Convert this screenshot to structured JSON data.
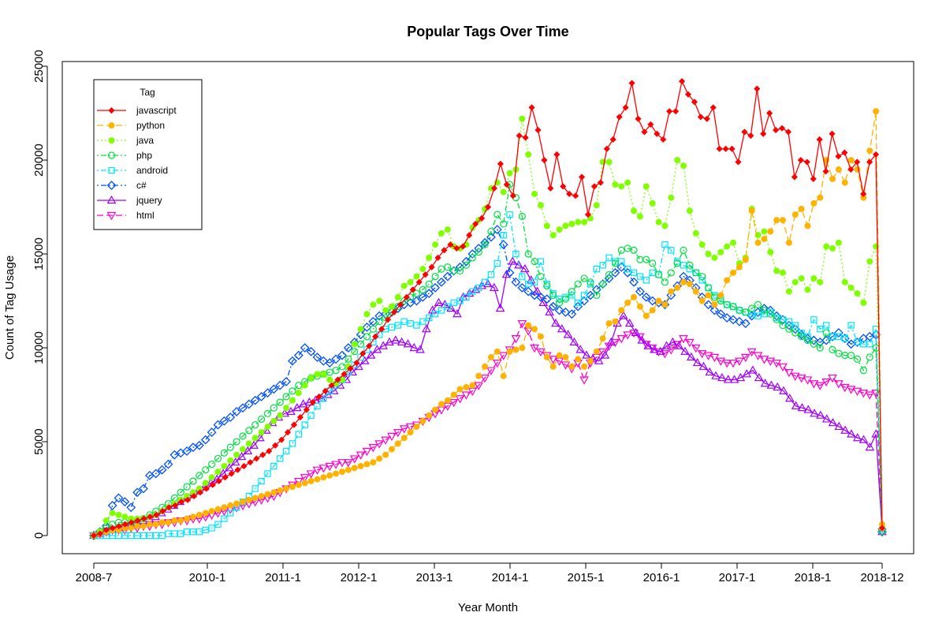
{
  "chart_data": {
    "type": "line",
    "title": "Popular Tags Over Time",
    "xlabel": "Year Month",
    "ylabel": "Count of Tag Usage",
    "x_start": "2008-7",
    "x_end": "2018-12",
    "xlim": [
      "2008-7",
      "2018-12"
    ],
    "ylim": [
      0,
      25000
    ],
    "x_tick_labels": [
      "2008-7",
      "2010-1",
      "2011-1",
      "2012-1",
      "2013-1",
      "2014-1",
      "2015-1",
      "2016-1",
      "2017-1",
      "2018-1",
      "2018-12"
    ],
    "y_ticks": [
      0,
      5000,
      10000,
      15000,
      20000,
      25000
    ],
    "grid": false,
    "legend": {
      "title": "Tag",
      "placement": "top-left"
    },
    "series": [
      {
        "name": "javascript",
        "color": "#ff0000",
        "marker": "diamond-filled",
        "line_style": "solid",
        "values": [
          0,
          100,
          300,
          400,
          500,
          600,
          700,
          800,
          900,
          1000,
          1100,
          1300,
          1500,
          1600,
          1800,
          1900,
          2100,
          2300,
          2500,
          2700,
          2900,
          3100,
          3300,
          3500,
          3700,
          3900,
          4100,
          4300,
          4500,
          4800,
          5100,
          5500,
          5900,
          6300,
          6700,
          7100,
          7400,
          7700,
          8000,
          8300,
          8600,
          8900,
          9200,
          9700,
          10100,
          10600,
          11000,
          11500,
          11900,
          12300,
          12700,
          13100,
          13500,
          13900,
          14300,
          14800,
          15200,
          15500,
          15300,
          15400,
          16000,
          16600,
          16900,
          17500,
          18500,
          19800,
          18700,
          18100,
          21300,
          21200,
          22800,
          21600,
          20000,
          18500,
          20300,
          18600,
          18200,
          18100,
          19100,
          17100,
          18600,
          18800,
          20600,
          21100,
          22300,
          22800,
          24100,
          22200,
          21500,
          21900,
          21400,
          21100,
          22600,
          22600,
          24200,
          23500,
          23100,
          22300,
          22200,
          22800,
          20600,
          20600,
          20600,
          19900,
          21500,
          21300,
          23800,
          21400,
          22500,
          21600,
          21700,
          21500,
          19100,
          20000,
          19900,
          19000,
          21100,
          19400,
          21400,
          20200,
          20400,
          19500,
          19900,
          18200,
          19900,
          20300,
          400
        ]
      },
      {
        "name": "python",
        "color": "#ffb300",
        "marker": "circle-filled",
        "line_style": "dashed",
        "values": [
          0,
          100,
          200,
          300,
          300,
          400,
          400,
          500,
          500,
          600,
          600,
          700,
          700,
          800,
          800,
          900,
          1000,
          1100,
          1200,
          1300,
          1400,
          1500,
          1600,
          1700,
          1800,
          1900,
          2000,
          2100,
          2200,
          2300,
          2400,
          2500,
          2600,
          2700,
          2800,
          2900,
          3000,
          3100,
          3200,
          3300,
          3400,
          3500,
          3600,
          3700,
          3800,
          3900,
          4100,
          4300,
          4600,
          4900,
          5200,
          5500,
          5800,
          6100,
          6400,
          6700,
          7000,
          7200,
          7500,
          7800,
          7900,
          8000,
          8500,
          9000,
          9500,
          9800,
          8500,
          9800,
          9900,
          10000,
          11200,
          11000,
          10600,
          9500,
          9000,
          9600,
          9500,
          9000,
          9400,
          9000,
          9300,
          9800,
          10500,
          11300,
          11400,
          12000,
          12400,
          12700,
          12200,
          11700,
          12000,
          12500,
          12300,
          13000,
          13200,
          13500,
          13400,
          13000,
          12500,
          12800,
          12300,
          12800,
          13600,
          14000,
          14300,
          14700,
          17300,
          15600,
          15800,
          16200,
          16800,
          16800,
          15600,
          17100,
          17400,
          16500,
          17700,
          18000,
          20000,
          19000,
          19500,
          18800,
          20000,
          19500,
          18000,
          20500,
          22600,
          600
        ]
      },
      {
        "name": "java",
        "color": "#80ff00",
        "marker": "circle-filled",
        "line_style": "dotted",
        "values": [
          0,
          200,
          800,
          1200,
          1100,
          1000,
          900,
          900,
          900,
          1000,
          1100,
          1300,
          1500,
          1700,
          1900,
          2100,
          2300,
          2500,
          2800,
          3100,
          3400,
          3700,
          4000,
          4300,
          4600,
          4900,
          5200,
          5500,
          5800,
          6100,
          6400,
          6800,
          7200,
          7600,
          8000,
          8400,
          8600,
          8600,
          8300,
          8100,
          8300,
          9000,
          10200,
          11000,
          11800,
          12300,
          12500,
          12000,
          12200,
          12700,
          13300,
          13500,
          13800,
          14200,
          14800,
          15500,
          16100,
          16300,
          15400,
          15300,
          15500,
          16400,
          16800,
          17400,
          18500,
          18800,
          18300,
          19300,
          19500,
          22200,
          20300,
          18200,
          17600,
          16500,
          16000,
          16300,
          16500,
          16600,
          16700,
          16700,
          16900,
          17600,
          19900,
          19900,
          18700,
          18600,
          18800,
          17300,
          17000,
          18600,
          17700,
          16700,
          16500,
          18000,
          20000,
          19700,
          17300,
          16100,
          15500,
          15000,
          14800,
          15100,
          15400,
          15600,
          14500,
          14800,
          17400,
          16000,
          16200,
          15100,
          14100,
          14000,
          13000,
          13500,
          13700,
          13100,
          13700,
          13500,
          15400,
          15300,
          15600,
          13500,
          13200,
          12900,
          12400,
          14600,
          15400,
          400
        ]
      },
      {
        "name": "php",
        "color": "#00e040",
        "marker": "circle-open",
        "line_style": "dotdash",
        "values": [
          0,
          200,
          400,
          600,
          700,
          700,
          700,
          800,
          900,
          1100,
          1300,
          1500,
          1700,
          2000,
          2300,
          2600,
          2900,
          3200,
          3500,
          3800,
          4100,
          4400,
          4700,
          5000,
          5300,
          5600,
          5900,
          6200,
          6500,
          6800,
          7100,
          7400,
          7700,
          8000,
          8200,
          8400,
          8500,
          8600,
          8700,
          8800,
          9000,
          9400,
          9800,
          10200,
          10600,
          11000,
          11400,
          11600,
          11900,
          12200,
          12500,
          12700,
          12900,
          13100,
          13400,
          13800,
          14200,
          14300,
          14100,
          14100,
          14400,
          14800,
          15100,
          15500,
          16200,
          17100,
          16600,
          18700,
          18000,
          17000,
          15000,
          14600,
          13800,
          13300,
          12800,
          12400,
          12600,
          13000,
          13400,
          13700,
          13500,
          12800,
          13400,
          13900,
          14500,
          15200,
          15300,
          15200,
          14700,
          14700,
          14500,
          13900,
          13500,
          14000,
          14500,
          15200,
          14400,
          14000,
          13800,
          13200,
          12700,
          12500,
          12300,
          12200,
          12000,
          11900,
          12100,
          12300,
          12000,
          11800,
          11500,
          11200,
          11000,
          10800,
          10600,
          10400,
          10200,
          10000,
          10800,
          9900,
          9700,
          9600,
          9600,
          9400,
          8800,
          9500,
          10000,
          200
        ]
      },
      {
        "name": "android",
        "color": "#00e5ff",
        "marker": "square-open",
        "line_style": "dotdash",
        "values": [
          0,
          0,
          0,
          0,
          0,
          0,
          0,
          0,
          0,
          0,
          0,
          0,
          100,
          100,
          100,
          200,
          200,
          200,
          300,
          400,
          600,
          900,
          1200,
          1500,
          1800,
          2100,
          2500,
          2900,
          3300,
          3700,
          4100,
          4500,
          4900,
          5400,
          5900,
          6400,
          6900,
          7300,
          7700,
          8000,
          8300,
          8700,
          9100,
          9500,
          9900,
          10300,
          10700,
          11000,
          11100,
          11200,
          11400,
          11300,
          11200,
          11400,
          11600,
          11800,
          12000,
          12200,
          12400,
          12500,
          12700,
          13000,
          13200,
          13500,
          13900,
          14500,
          16000,
          17100,
          15000,
          13800,
          13400,
          13500,
          14600,
          13400,
          12900,
          12600,
          12700,
          12800,
          12400,
          12800,
          13400,
          14200,
          14400,
          14800,
          14600,
          14600,
          14200,
          14000,
          13800,
          13600,
          14000,
          13900,
          15500,
          15200,
          14600,
          14400,
          14200,
          14000,
          13600,
          13200,
          12800,
          12600,
          12300,
          12200,
          12000,
          11900,
          11800,
          11700,
          11800,
          11900,
          11600,
          11500,
          11400,
          11200,
          10800,
          10600,
          11500,
          11000,
          11200,
          10600,
          10600,
          10500,
          11200,
          10300,
          10200,
          10200,
          11000,
          300
        ]
      },
      {
        "name": "c#",
        "color": "#0050ff",
        "marker": "diamond-open",
        "line_style": "dotdash",
        "values": [
          0,
          200,
          500,
          1600,
          2000,
          1800,
          1500,
          2300,
          2500,
          3200,
          3300,
          3500,
          3800,
          4300,
          4400,
          4500,
          4700,
          4800,
          5100,
          5500,
          5900,
          6100,
          6300,
          6600,
          6800,
          7000,
          7200,
          7400,
          7600,
          7800,
          8000,
          8200,
          9300,
          9600,
          10000,
          9800,
          9500,
          9300,
          9200,
          9400,
          9600,
          10000,
          10300,
          10700,
          11100,
          11400,
          11700,
          11800,
          11900,
          12100,
          12300,
          12400,
          12500,
          12700,
          12900,
          13200,
          13500,
          13800,
          14100,
          14300,
          14600,
          15000,
          15300,
          15600,
          15900,
          16300,
          15500,
          14000,
          13500,
          13200,
          13000,
          12800,
          12700,
          12600,
          12200,
          12000,
          11900,
          11800,
          12200,
          12500,
          12800,
          13100,
          13400,
          13700,
          14000,
          14300,
          14000,
          13500,
          13000,
          12700,
          12500,
          12400,
          12300,
          12800,
          13300,
          13800,
          13600,
          13200,
          12700,
          12300,
          12000,
          11800,
          11600,
          11500,
          11400,
          11300,
          11700,
          11900,
          12100,
          12000,
          11700,
          11500,
          11200,
          11000,
          10700,
          10500,
          10400,
          10300,
          10400,
          10600,
          10800,
          10500,
          10200,
          10300,
          10500,
          10600,
          10700,
          200
        ]
      },
      {
        "name": "jquery",
        "color": "#a000ff",
        "marker": "triangle-up-open",
        "line_style": "solid",
        "values": [
          0,
          100,
          200,
          300,
          400,
          500,
          600,
          700,
          800,
          900,
          1000,
          1200,
          1400,
          1600,
          1800,
          2000,
          2200,
          2400,
          2600,
          2800,
          3000,
          3300,
          3600,
          3900,
          4200,
          4500,
          4800,
          5200,
          5600,
          6000,
          6300,
          6500,
          6600,
          6800,
          7000,
          7100,
          7200,
          7300,
          7500,
          7700,
          8000,
          8300,
          8700,
          9000,
          9300,
          9600,
          9900,
          10100,
          10300,
          10400,
          10300,
          10200,
          10000,
          9900,
          11000,
          12000,
          12400,
          12300,
          12100,
          11800,
          12700,
          12900,
          13100,
          13300,
          13400,
          13200,
          12100,
          13900,
          14600,
          14400,
          14200,
          13600,
          13000,
          12400,
          11900,
          11300,
          11000,
          10700,
          10300,
          9900,
          9600,
          9400,
          9300,
          9600,
          10300,
          11300,
          11700,
          11300,
          10800,
          10400,
          10100,
          9900,
          9800,
          10100,
          10300,
          10100,
          9800,
          9500,
          9200,
          9000,
          8700,
          8500,
          8400,
          8300,
          8300,
          8400,
          8600,
          8800,
          8400,
          8100,
          8000,
          7900,
          7700,
          7300,
          6900,
          6800,
          6700,
          6500,
          6400,
          6200,
          6000,
          5800,
          5600,
          5400,
          5200,
          5100,
          4700,
          5400,
          200
        ]
      },
      {
        "name": "html",
        "color": "#ff00cc",
        "marker": "triangle-down-open",
        "line_style": "dashed",
        "values": [
          0,
          100,
          200,
          300,
          300,
          300,
          400,
          400,
          500,
          500,
          600,
          600,
          700,
          700,
          800,
          800,
          900,
          900,
          1000,
          1100,
          1200,
          1300,
          1400,
          1500,
          1600,
          1700,
          1800,
          1900,
          2000,
          2100,
          2300,
          2500,
          2700,
          2900,
          3100,
          3300,
          3500,
          3600,
          3700,
          3800,
          3900,
          3900,
          4100,
          4300,
          4500,
          4700,
          4900,
          5100,
          5300,
          5500,
          5700,
          5800,
          5900,
          6100,
          6300,
          6500,
          6700,
          6900,
          7100,
          7300,
          7500,
          7700,
          8000,
          8400,
          8800,
          9200,
          9600,
          9900,
          10500,
          11300,
          10900,
          10000,
          9800,
          9600,
          9400,
          9300,
          9100,
          8900,
          9200,
          8300,
          9200,
          9500,
          9800,
          10100,
          10300,
          10500,
          10700,
          10800,
          10600,
          10200,
          10000,
          9800,
          9700,
          9900,
          10200,
          10500,
          10300,
          10000,
          9700,
          9600,
          9500,
          9300,
          9200,
          9200,
          9300,
          9500,
          9800,
          9600,
          9400,
          9300,
          9200,
          9000,
          8700,
          8500,
          8400,
          8300,
          8100,
          8000,
          8200,
          8400,
          8100,
          7900,
          7800,
          7700,
          7600,
          7500,
          7600,
          200
        ]
      }
    ]
  }
}
